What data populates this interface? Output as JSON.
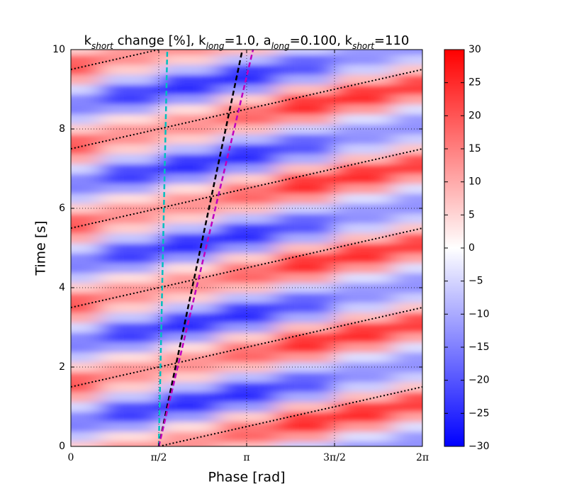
{
  "chart_data": {
    "type": "contourf",
    "title": [
      "k",
      "short",
      " change [%], k",
      "long",
      "=1.0, a",
      "long",
      "=0.100, k",
      "short",
      "=110"
    ],
    "xlabel": "Phase [rad]",
    "ylabel": "Time [s]",
    "xlim": [
      0,
      6.2832
    ],
    "ylim": [
      0,
      10
    ],
    "xticks": [
      0,
      {
        "value": 1.5708,
        "label": "π/2"
      },
      {
        "value": 3.1416,
        "label": "π"
      },
      {
        "value": 4.7124,
        "label": "3π/2"
      },
      {
        "value": 6.2832,
        "label": "2π"
      }
    ],
    "yticks": [
      0,
      2,
      4,
      6,
      8,
      10
    ],
    "grid": true,
    "clim": [
      -30,
      30
    ],
    "cticks": [
      {
        "value": -30,
        "label": "−30"
      },
      {
        "value": -25,
        "label": "−25"
      },
      {
        "value": -20,
        "label": "−20"
      },
      {
        "value": -15,
        "label": "−15"
      },
      {
        "value": -10,
        "label": "−10"
      },
      {
        "value": -5,
        "label": "−5"
      },
      0,
      5,
      10,
      15,
      20,
      25,
      30
    ],
    "colormap": [
      "#0000ff",
      "#ffffff",
      "#ff0000"
    ],
    "x": [
      0,
      1.0472,
      2.0944,
      3.1416,
      4.1888,
      5.236,
      6.2832
    ],
    "y": [
      0,
      0.25,
      0.5,
      0.75,
      1,
      1.25,
      1.5,
      1.75,
      2,
      2.25,
      2.5,
      2.75,
      3,
      3.25,
      3.5,
      3.75,
      4,
      4.25,
      4.5,
      4.75,
      5,
      5.25,
      5.5,
      5.75,
      6,
      6.25,
      6.5,
      6.75,
      7,
      7.25,
      7.5,
      7.75,
      8,
      8.25,
      8.5,
      8.75,
      9,
      9.25,
      9.5,
      9.75,
      10
    ],
    "z": [
      [
        6,
        12,
        13,
        8,
        -6,
        -12,
        -13
      ],
      [
        -7,
        4,
        12,
        18,
        12,
        -4,
        -12
      ],
      [
        -15,
        -11,
        4,
        16,
        25,
        12,
        -4
      ],
      [
        -14,
        -23,
        -12,
        6,
        23,
        25,
        11
      ],
      [
        -5,
        -21,
        -25,
        -12,
        8,
        23,
        23
      ],
      [
        10,
        -7,
        -23,
        -25,
        -10,
        8,
        21
      ],
      [
        20,
        6,
        -8,
        -23,
        -20,
        -6,
        7
      ],
      [
        18,
        13,
        6,
        -8,
        -18,
        -13,
        -6
      ],
      [
        6,
        12,
        13,
        8,
        -6,
        -12,
        -13
      ],
      [
        -7,
        4,
        12,
        18,
        12,
        -4,
        -12
      ],
      [
        -15,
        -11,
        4,
        16,
        25,
        12,
        -4
      ],
      [
        -14,
        -23,
        -12,
        6,
        23,
        25,
        11
      ],
      [
        -5,
        -21,
        -25,
        -12,
        8,
        23,
        23
      ],
      [
        10,
        -7,
        -23,
        -25,
        -10,
        8,
        21
      ],
      [
        20,
        6,
        -8,
        -23,
        -20,
        -6,
        7
      ],
      [
        18,
        13,
        6,
        -8,
        -18,
        -13,
        -6
      ],
      [
        6,
        12,
        13,
        8,
        -6,
        -12,
        -13
      ],
      [
        -7,
        4,
        12,
        18,
        12,
        -4,
        -12
      ],
      [
        -15,
        -11,
        4,
        16,
        25,
        12,
        -4
      ],
      [
        -14,
        -23,
        -12,
        6,
        23,
        25,
        11
      ],
      [
        -5,
        -21,
        -25,
        -12,
        8,
        23,
        23
      ],
      [
        10,
        -7,
        -23,
        -25,
        -10,
        8,
        21
      ],
      [
        20,
        6,
        -8,
        -23,
        -20,
        -6,
        7
      ],
      [
        18,
        13,
        6,
        -8,
        -18,
        -13,
        -6
      ],
      [
        6,
        12,
        13,
        8,
        -6,
        -12,
        -13
      ],
      [
        -7,
        4,
        12,
        18,
        12,
        -4,
        -12
      ],
      [
        -15,
        -11,
        4,
        16,
        25,
        12,
        -4
      ],
      [
        -14,
        -23,
        -12,
        6,
        23,
        25,
        11
      ],
      [
        -5,
        -21,
        -25,
        -12,
        8,
        23,
        23
      ],
      [
        10,
        -7,
        -23,
        -25,
        -10,
        8,
        21
      ],
      [
        20,
        6,
        -8,
        -23,
        -20,
        -6,
        7
      ],
      [
        18,
        13,
        6,
        -8,
        -18,
        -13,
        -6
      ],
      [
        6,
        12,
        13,
        8,
        -6,
        -12,
        -13
      ],
      [
        -7,
        4,
        12,
        18,
        12,
        -4,
        -12
      ],
      [
        -15,
        -11,
        4,
        16,
        25,
        12,
        -4
      ],
      [
        -14,
        -23,
        -12,
        6,
        23,
        25,
        11
      ],
      [
        -5,
        -21,
        -25,
        -12,
        8,
        23,
        23
      ],
      [
        10,
        -7,
        -23,
        -25,
        -10,
        8,
        21
      ],
      [
        20,
        6,
        -8,
        -23,
        -20,
        -6,
        7
      ],
      [
        18,
        13,
        6,
        -8,
        -18,
        -13,
        -6
      ],
      [
        6,
        12,
        13,
        8,
        -6,
        -12,
        -13
      ]
    ],
    "series": [
      {
        "color": "#000000",
        "style": "dotted",
        "x": [
          1.5708,
          6.2832
        ],
        "y": [
          0,
          1.5
        ]
      },
      {
        "color": "#000000",
        "style": "dotted",
        "x": [
          0,
          6.2832
        ],
        "y": [
          1.5,
          3.5
        ]
      },
      {
        "color": "#000000",
        "style": "dotted",
        "x": [
          0,
          6.2832
        ],
        "y": [
          3.5,
          5.5
        ]
      },
      {
        "color": "#000000",
        "style": "dotted",
        "x": [
          0,
          6.2832
        ],
        "y": [
          5.5,
          7.5
        ]
      },
      {
        "color": "#000000",
        "style": "dotted",
        "x": [
          0,
          6.2832
        ],
        "y": [
          7.5,
          9.5
        ]
      },
      {
        "color": "#000000",
        "style": "dotted",
        "x": [
          0,
          1.5708
        ],
        "y": [
          9.5,
          10
        ]
      },
      {
        "color": "#00bfbf",
        "style": "dashed",
        "x": [
          1.571,
          1.723
        ],
        "y": [
          0,
          10
        ]
      },
      {
        "color": "#000000",
        "style": "dashed",
        "x": [
          1.571,
          3.066
        ],
        "y": [
          0,
          10
        ]
      },
      {
        "color": "#bf00bf",
        "style": "dashed",
        "x": [
          1.571,
          3.256
        ],
        "y": [
          0,
          10
        ]
      }
    ]
  }
}
